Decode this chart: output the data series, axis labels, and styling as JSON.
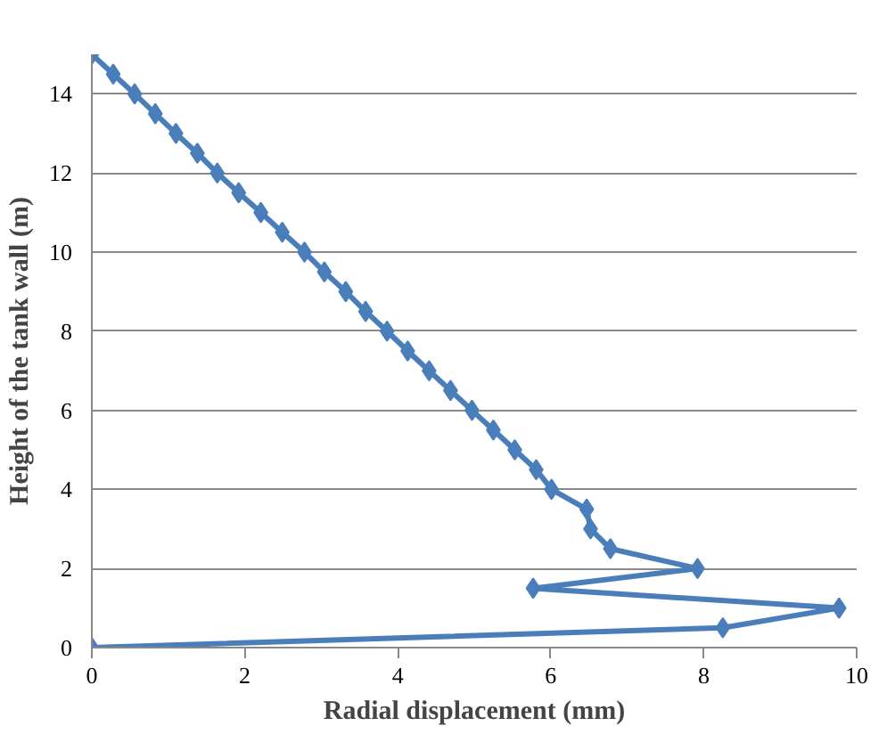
{
  "chart_data": {
    "type": "line",
    "xlabel": "Radial displacement (mm)",
    "ylabel": "Height of the tank wall (m)",
    "xlim": [
      0,
      10
    ],
    "xticks": [
      0,
      2,
      4,
      6,
      8,
      10
    ],
    "ylim": [
      0,
      15
    ],
    "yticks": [
      0,
      2,
      4,
      6,
      8,
      10,
      12,
      14
    ],
    "grid": "y",
    "marker": "diamond",
    "line_style": "solid",
    "series": [
      {
        "color": "#4a7ebb",
        "x": [
          0,
          0.28,
          0.56,
          0.83,
          1.1,
          1.38,
          1.64,
          1.92,
          2.21,
          2.49,
          2.78,
          3.04,
          3.32,
          3.58,
          3.86,
          4.13,
          4.41,
          4.69,
          4.97,
          5.25,
          5.53,
          5.81,
          6.01,
          6.47,
          6.52,
          6.78,
          7.92,
          5.77,
          9.77,
          8.25,
          0
        ],
        "values": [
          15,
          14.5,
          14,
          13.5,
          13,
          12.5,
          12,
          11.5,
          11,
          10.5,
          10,
          9.5,
          9,
          8.5,
          8,
          7.5,
          7,
          6.5,
          6,
          5.5,
          5,
          4.5,
          4,
          3.5,
          3,
          2.5,
          2,
          1.5,
          1,
          0.5,
          0
        ]
      }
    ]
  }
}
